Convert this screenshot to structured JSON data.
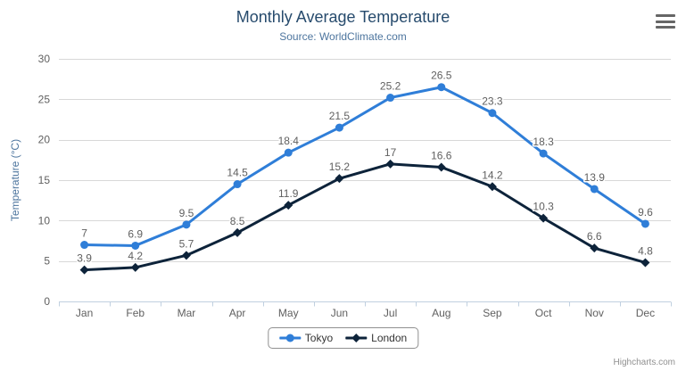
{
  "header": {
    "title": "Monthly Average Temperature",
    "subtitle": "Source: WorldClimate.com"
  },
  "export_menu": {
    "icon": "hamburger-icon"
  },
  "credits": {
    "label": "Highcharts.com"
  },
  "colors": {
    "title": "#274b6d",
    "subtitle": "#4d759e",
    "axis_label": "#606060",
    "grid_line": "#d8d8d8",
    "axis_line": "#c0d0e0",
    "legend_border": "#909090",
    "credits_text": "#909090",
    "tokyo": "#2f7ed8",
    "london": "#0d233a"
  },
  "chart_data": {
    "type": "line",
    "title": "Monthly Average Temperature",
    "subtitle": "Source: WorldClimate.com",
    "xlabel": "",
    "ylabel": "Temperature (°C)",
    "ylim": [
      0,
      30
    ],
    "ytick_step": 5,
    "grid": true,
    "legend_position": "bottom",
    "data_labels": true,
    "categories": [
      "Jan",
      "Feb",
      "Mar",
      "Apr",
      "May",
      "Jun",
      "Jul",
      "Aug",
      "Sep",
      "Oct",
      "Nov",
      "Dec"
    ],
    "series": [
      {
        "name": "Tokyo",
        "color": "#2f7ed8",
        "marker": "circle",
        "values": [
          7,
          6.9,
          9.5,
          14.5,
          18.4,
          21.5,
          25.2,
          26.5,
          23.3,
          18.3,
          13.9,
          9.6
        ]
      },
      {
        "name": "London",
        "color": "#0d233a",
        "marker": "diamond",
        "values": [
          3.9,
          4.2,
          5.7,
          8.5,
          11.9,
          15.2,
          17,
          16.6,
          14.2,
          10.3,
          6.6,
          4.8
        ]
      }
    ]
  }
}
